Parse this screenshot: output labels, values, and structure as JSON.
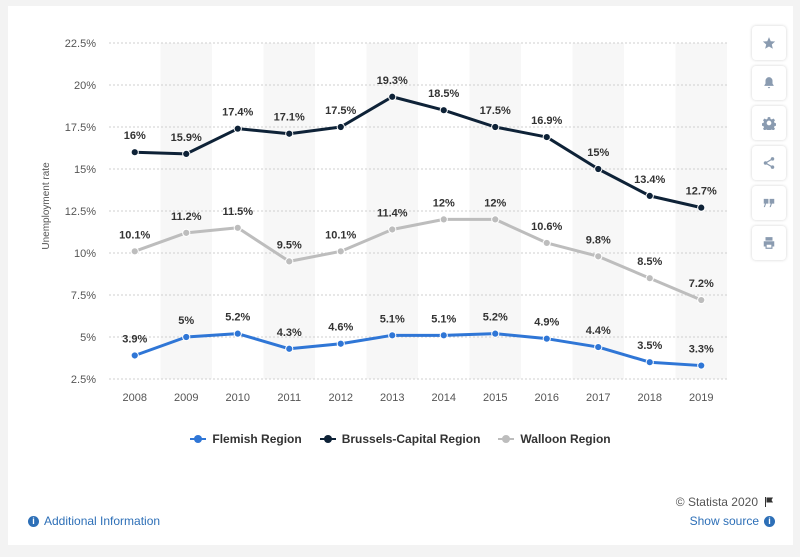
{
  "chart_data": {
    "type": "line",
    "title": "",
    "xlabel": "",
    "ylabel": "Unemployment rate",
    "ylim": [
      2.5,
      22.5
    ],
    "yticks": [
      "2.5%",
      "5%",
      "7.5%",
      "10%",
      "12.5%",
      "15%",
      "17.5%",
      "20%",
      "22.5%"
    ],
    "ytick_values": [
      2.5,
      5,
      7.5,
      10,
      12.5,
      15,
      17.5,
      20,
      22.5
    ],
    "categories": [
      "2008",
      "2009",
      "2010",
      "2011",
      "2012",
      "2013",
      "2014",
      "2015",
      "2016",
      "2017",
      "2018",
      "2019"
    ],
    "grid": true,
    "legend_position": "bottom",
    "series": [
      {
        "name": "Flemish Region",
        "color": "#2f76d6",
        "values": [
          3.9,
          5,
          5.2,
          4.3,
          4.6,
          5.1,
          5.1,
          5.2,
          4.9,
          4.4,
          3.5,
          3.3
        ],
        "labels": [
          "3.9%",
          "5%",
          "5.2%",
          "4.3%",
          "4.6%",
          "5.1%",
          "5.1%",
          "5.2%",
          "4.9%",
          "4.4%",
          "3.5%",
          "3.3%"
        ]
      },
      {
        "name": "Brussels-Capital Region",
        "color": "#0e2237",
        "values": [
          16,
          15.9,
          17.4,
          17.1,
          17.5,
          19.3,
          18.5,
          17.5,
          16.9,
          15,
          13.4,
          12.7
        ],
        "labels": [
          "16%",
          "15.9%",
          "17.4%",
          "17.1%",
          "17.5%",
          "19.3%",
          "18.5%",
          "17.5%",
          "16.9%",
          "15%",
          "13.4%",
          "12.7%"
        ]
      },
      {
        "name": "Walloon Region",
        "color": "#bdbdbd",
        "values": [
          10.1,
          11.2,
          11.5,
          9.5,
          10.1,
          11.4,
          12,
          12,
          10.6,
          9.8,
          8.5,
          7.2
        ],
        "labels": [
          "10.1%",
          "11.2%",
          "11.5%",
          "9.5%",
          "10.1%",
          "11.4%",
          "12%",
          "12%",
          "10.6%",
          "9.8%",
          "8.5%",
          "7.2%"
        ]
      }
    ]
  },
  "toolbar": {
    "icons": [
      "star-icon",
      "bell-icon",
      "gear-icon",
      "share-icon",
      "quote-icon",
      "print-icon"
    ]
  },
  "footer": {
    "copyright": "© Statista 2020",
    "additional_info": "Additional Information",
    "show_source": "Show source"
  }
}
